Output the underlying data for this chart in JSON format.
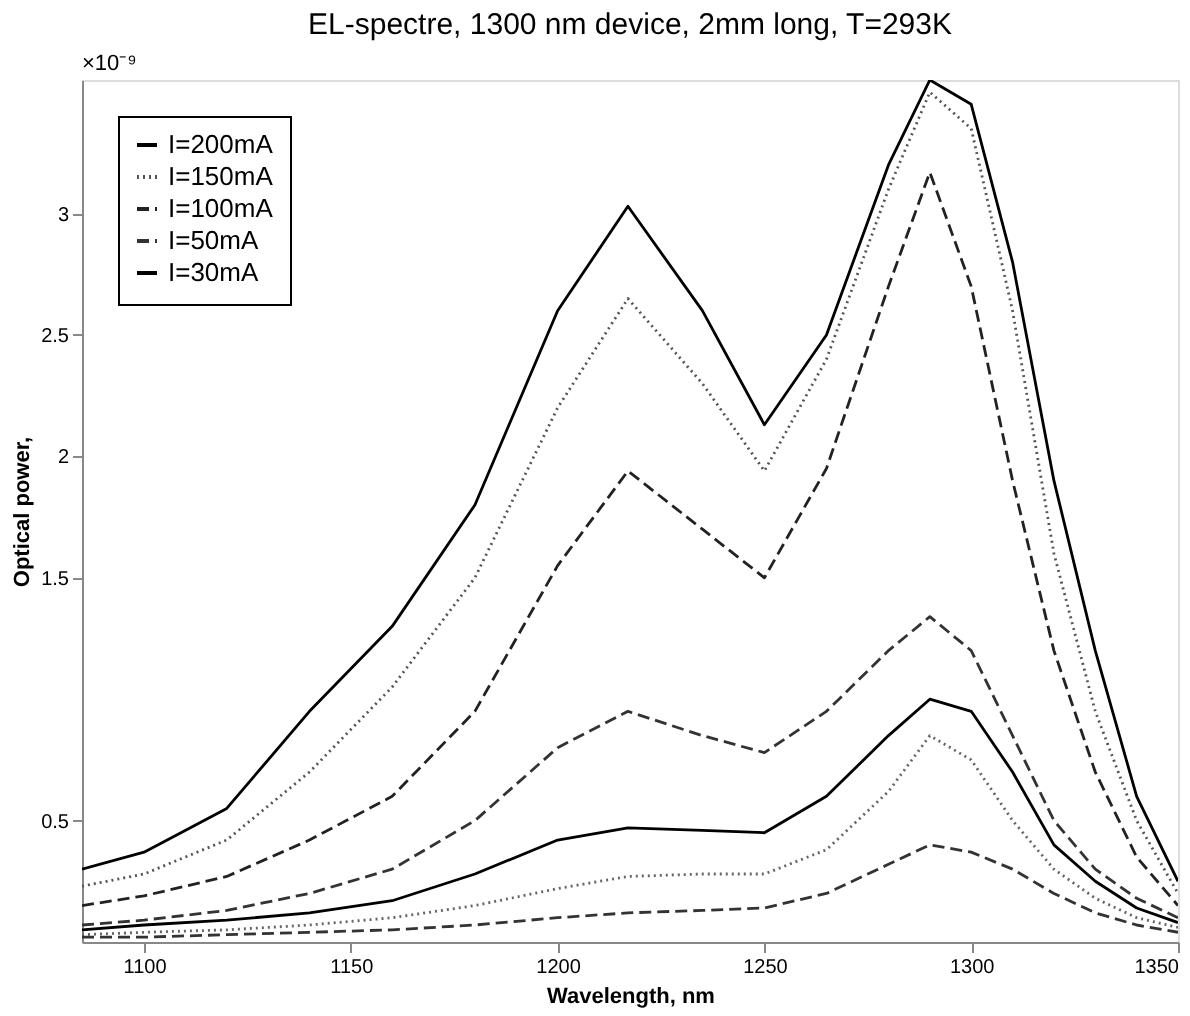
{
  "chart_data": {
    "type": "line",
    "title": "EL-spectre, 1300 nm device, 2mm long, T=293K",
    "xlabel": "Wavelength, nm",
    "ylabel": "Optical power,",
    "annotations": [
      "×10⁻⁹"
    ],
    "x": [
      1085,
      1100,
      1120,
      1140,
      1160,
      1180,
      1200,
      1217,
      1235,
      1250,
      1265,
      1280,
      1290,
      1300,
      1310,
      1320,
      1330,
      1340,
      1350
    ],
    "series": [
      {
        "name": "I=200mA",
        "color": "#000000",
        "line_style": "solid",
        "values": [
          0.3,
          0.37,
          0.55,
          0.95,
          1.3,
          1.8,
          2.6,
          3.03,
          2.6,
          2.13,
          2.5,
          3.2,
          3.55,
          3.45,
          2.8,
          1.9,
          1.2,
          0.6,
          0.25
        ]
      },
      {
        "name": "I=150mA",
        "color": "#555555",
        "line_style": "dotted",
        "values": [
          0.23,
          0.28,
          0.42,
          0.7,
          1.05,
          1.5,
          2.2,
          2.65,
          2.3,
          1.94,
          2.4,
          3.1,
          3.5,
          3.35,
          2.6,
          1.6,
          0.95,
          0.5,
          0.2
        ]
      },
      {
        "name": "I=100mA",
        "color": "#222222",
        "line_style": "dashed",
        "values": [
          0.15,
          0.19,
          0.27,
          0.42,
          0.6,
          0.95,
          1.55,
          1.94,
          1.7,
          1.5,
          1.95,
          2.7,
          3.17,
          2.7,
          1.9,
          1.2,
          0.7,
          0.35,
          0.15
        ]
      },
      {
        "name": "I=50mA",
        "color": "#333333",
        "line_style": "dashed",
        "values": [
          0.07,
          0.09,
          0.13,
          0.2,
          0.3,
          0.5,
          0.8,
          0.95,
          0.85,
          0.78,
          0.95,
          1.2,
          1.34,
          1.2,
          0.85,
          0.5,
          0.3,
          0.18,
          0.1
        ]
      },
      {
        "name": "I=30mA",
        "color": "#000000",
        "line_style": "solid",
        "values": [
          0.05,
          0.07,
          0.09,
          0.12,
          0.17,
          0.28,
          0.42,
          0.47,
          0.46,
          0.45,
          0.6,
          0.85,
          1.0,
          0.95,
          0.7,
          0.4,
          0.25,
          0.14,
          0.08
        ]
      },
      {
        "color": "#666666",
        "line_style": "dotted",
        "values": [
          0.03,
          0.04,
          0.05,
          0.07,
          0.1,
          0.15,
          0.22,
          0.27,
          0.28,
          0.28,
          0.38,
          0.62,
          0.85,
          0.75,
          0.5,
          0.3,
          0.18,
          0.1,
          0.06
        ]
      },
      {
        "color": "#333333",
        "line_style": "dashed",
        "values": [
          0.02,
          0.02,
          0.03,
          0.04,
          0.05,
          0.07,
          0.1,
          0.12,
          0.13,
          0.14,
          0.2,
          0.32,
          0.4,
          0.37,
          0.3,
          0.2,
          0.12,
          0.07,
          0.04
        ]
      }
    ],
    "xlim": [
      1085,
      1350
    ],
    "ylim": [
      0,
      3.55
    ],
    "xticks": [
      1100,
      1150,
      1200,
      1250,
      1300,
      1350
    ],
    "yticks": [
      0.5,
      1.5,
      2,
      2.5,
      3
    ],
    "grid": false,
    "legend": "top left"
  }
}
